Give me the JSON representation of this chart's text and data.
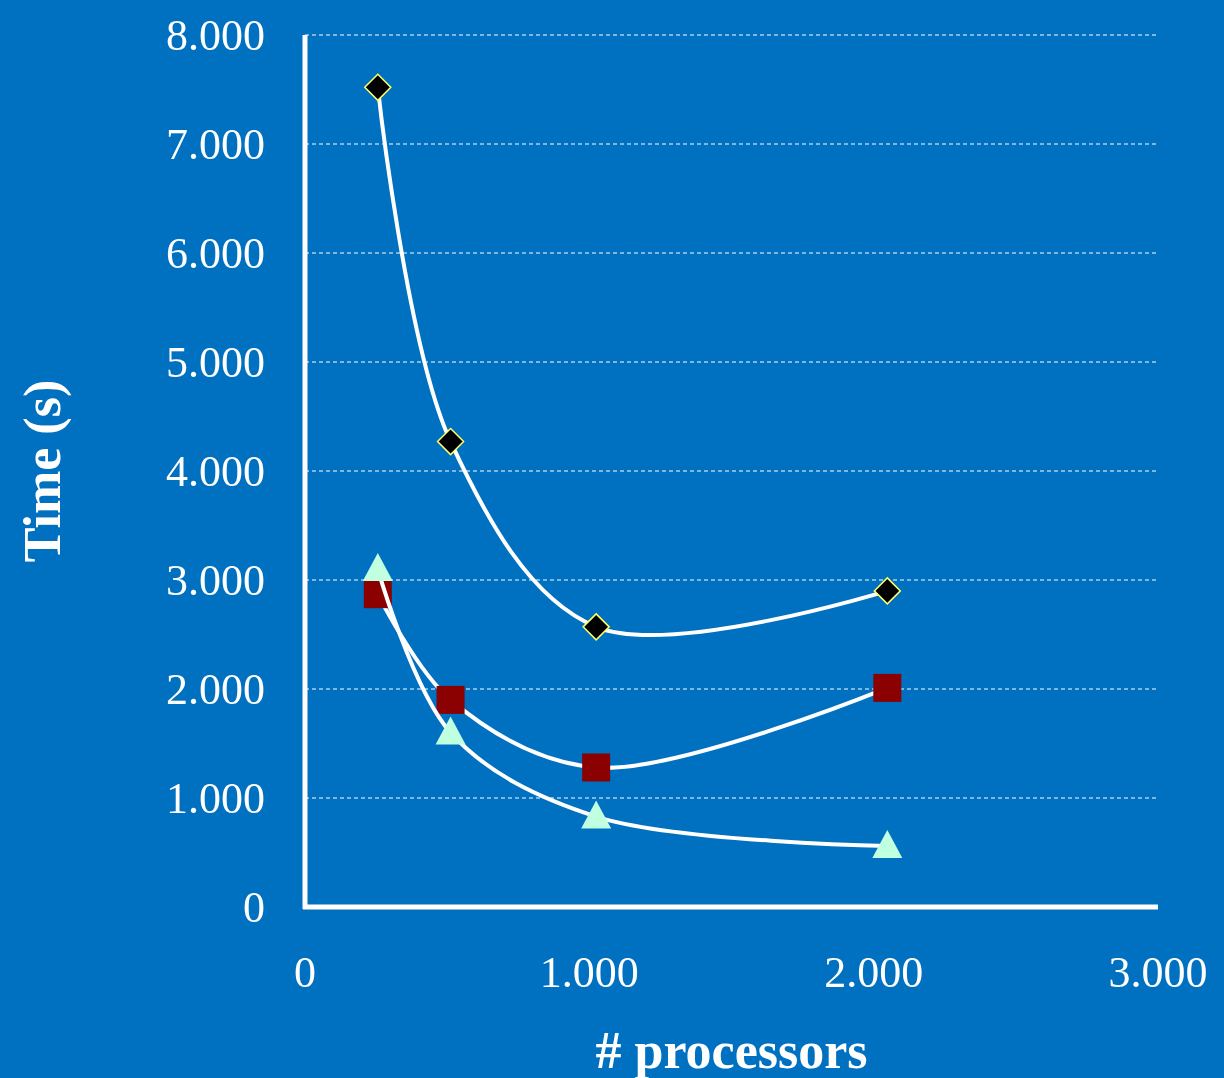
{
  "chart_data": {
    "type": "line",
    "xlabel": "# processors",
    "ylabel": "Time (s)",
    "xlim": [
      0,
      3000
    ],
    "xticks": [
      0,
      {
        "value": 1000,
        "label": "1.000"
      },
      {
        "value": 2000,
        "label": "2.000"
      },
      {
        "value": 3000,
        "label": "3.000"
      }
    ],
    "ylim": [
      0,
      8000
    ],
    "yticks": [
      0,
      {
        "value": 1000,
        "label": "1.000"
      },
      {
        "value": 2000,
        "label": "2.000"
      },
      {
        "value": 3000,
        "label": "3.000"
      },
      {
        "value": 4000,
        "label": "4.000"
      },
      {
        "value": 5000,
        "label": "5.000"
      },
      {
        "value": 6000,
        "label": "6.000"
      },
      {
        "value": 7000,
        "label": "7.000"
      },
      {
        "value": 8000,
        "label": "8.000"
      }
    ],
    "grid": "y",
    "x": [
      256,
      512,
      1024,
      2048
    ],
    "series": [
      {
        "color": "#000000",
        "marker": "diamond",
        "values": [
          7520,
          4270,
          2570,
          2900
        ]
      },
      {
        "color": "#8b0000",
        "marker": "square",
        "values": [
          2870,
          1900,
          1280,
          2010
        ]
      },
      {
        "color": "#c0ffe0",
        "marker": "triangle",
        "values": [
          3100,
          1600,
          830,
          560
        ]
      }
    ]
  }
}
